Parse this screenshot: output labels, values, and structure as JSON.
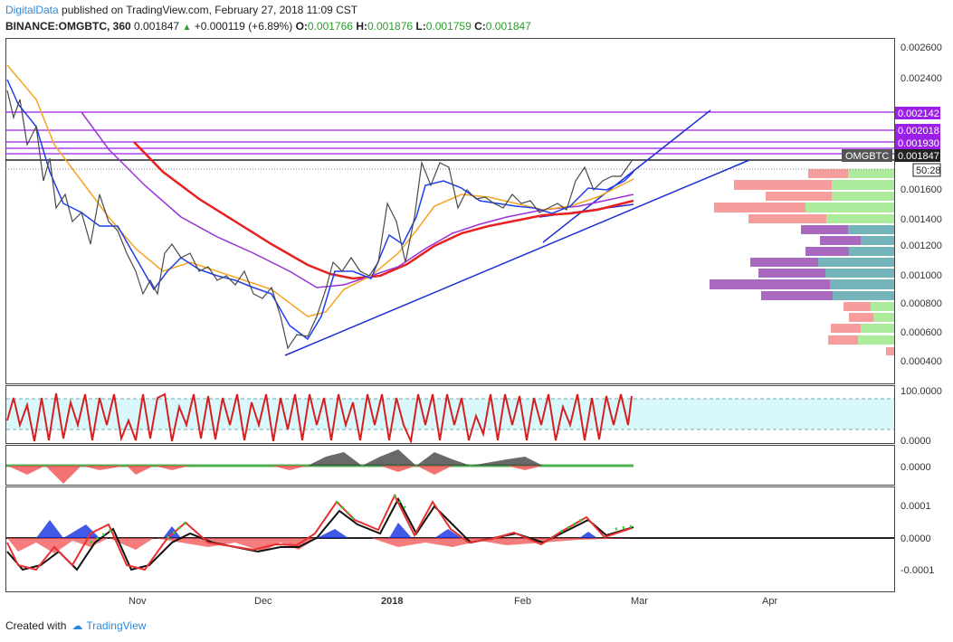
{
  "header": {
    "brand": "DigitalData",
    "published_text": "published on TradingView.com, February 27, 2018 11:09 CST",
    "symbol": "BINANCE:OMGBTC, 360",
    "last": "0.001847",
    "change": "+0.000119 (+6.89%)",
    "open_label": "O:",
    "open": "0.001766",
    "high_label": "H:",
    "high": "0.001876",
    "low_label": "L:",
    "low": "0.001759",
    "close_label": "C:",
    "close": "0.001847"
  },
  "price_axis": {
    "ticks": [
      "0.002600",
      "0.002400",
      "0.002200",
      "0.002000",
      "0.001800",
      "0.001600",
      "0.001400",
      "0.001200",
      "0.001000",
      "0.000800",
      "0.000600",
      "0.000400"
    ],
    "labels": [
      {
        "text": "0.002142",
        "color": "#9b1fe8"
      },
      {
        "text": "0.002018",
        "color": "#9b1fe8"
      },
      {
        "text": "0.001930",
        "color": "#9b1fe8"
      },
      {
        "text": "0.001847",
        "color": "#222222"
      }
    ],
    "symbol_tag": "OMGBTC",
    "countdown": "50:28"
  },
  "indicator_axes": {
    "stoch": [
      "100.0000",
      "0.0000"
    ],
    "osc": [
      "0.0000"
    ],
    "macd": [
      "0.0001",
      "0.0000",
      "-0.0001"
    ]
  },
  "time_axis": [
    "Nov",
    "Dec",
    "2018",
    "Feb",
    "Mar",
    "Apr"
  ],
  "footer": {
    "created_with": "Created with",
    "tradingview": "TradingView"
  },
  "colors": {
    "up": "#26a69a",
    "down": "#ef5350",
    "horizontal_levels": "#9b1fe8",
    "trendline": "#1e2fd6",
    "ma_fast": "#1e3ff0",
    "ma_mid": "#f5a623",
    "ma_slow": "#9b30d9",
    "ma_long": "#e82020"
  }
}
